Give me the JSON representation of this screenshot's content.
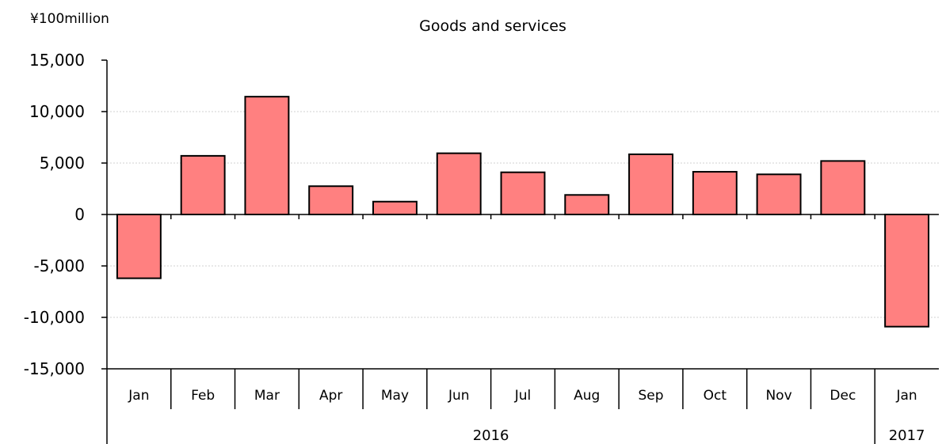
{
  "chart_data": {
    "type": "bar",
    "title": "Goods and services",
    "ylabel": "¥100million",
    "xlabel": "",
    "ylim": [
      -15000,
      15000
    ],
    "yticks": [
      15000,
      10000,
      5000,
      0,
      -5000,
      -10000,
      -15000
    ],
    "ytick_labels": [
      "15,000",
      "10,000",
      "5,000",
      "0",
      "-5,000",
      "-10,000",
      "-15,000"
    ],
    "categories": [
      "Jan",
      "Feb",
      "Mar",
      "Apr",
      "May",
      "Jun",
      "Jul",
      "Aug",
      "Sep",
      "Oct",
      "Nov",
      "Dec",
      "Jan"
    ],
    "years": [
      {
        "label": "2016",
        "count": 12
      },
      {
        "label": "2017",
        "count": 1
      }
    ],
    "values": [
      -6200,
      5700,
      11450,
      2750,
      1250,
      5950,
      4100,
      1900,
      5850,
      4150,
      3900,
      5200,
      -10900
    ],
    "grid": true,
    "legend": "none",
    "bar_color": "#ff8080",
    "bar_edge_color": "#000000"
  }
}
